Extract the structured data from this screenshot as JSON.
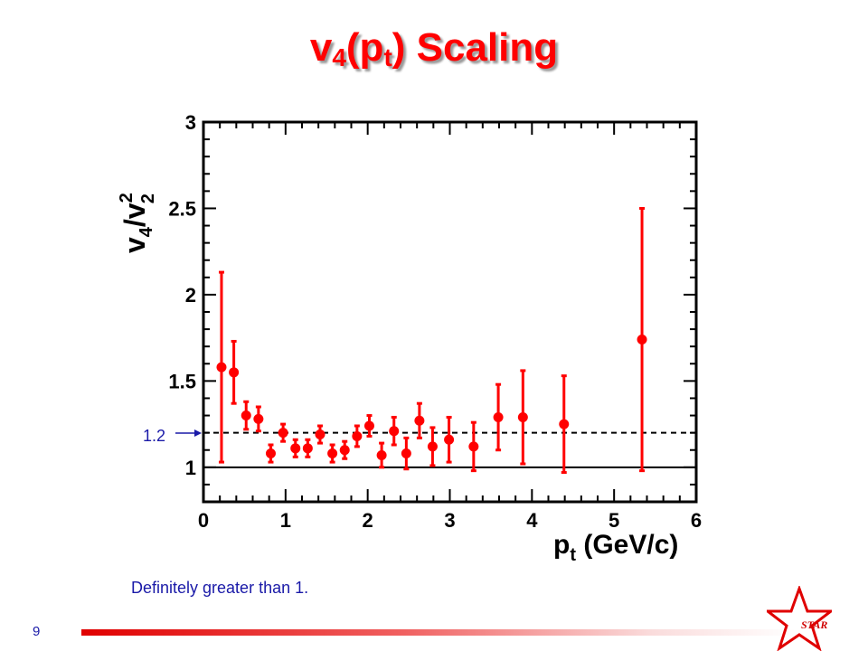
{
  "slide": {
    "title_main": "v",
    "title_sub1": "4",
    "title_mid": "(p",
    "title_sub2": "t",
    "title_end": ") Scaling",
    "note": "Definitely greater than 1.",
    "page_number": "9",
    "logo_text": "STAR"
  },
  "colors": {
    "title": "#ff0000",
    "data": "#ff0000",
    "note": "#1a1aa8",
    "footer_bar": "#e00000"
  },
  "chart_data": {
    "type": "scatter",
    "title": "",
    "xlabel": {
      "main": "p",
      "sub": "t",
      "rest": " (GeV/c)"
    },
    "ylabel": {
      "v": "v",
      "sub4": "4",
      "slash": "/v",
      "sup2": "2",
      "sub2": "2"
    },
    "xlim": [
      0,
      6
    ],
    "ylim": [
      0.8,
      3
    ],
    "x_ticks": [
      0,
      1,
      2,
      3,
      4,
      5,
      6
    ],
    "x_tick_labels": [
      "0",
      "1",
      "2",
      "3",
      "4",
      "5",
      "6"
    ],
    "y_ticks": [
      1,
      1.5,
      2,
      2.5,
      3
    ],
    "y_tick_labels": [
      "1",
      "1.5",
      "2",
      "2.5",
      "3"
    ],
    "reference_lines": [
      {
        "y": 1.0,
        "style": "solid"
      },
      {
        "y": 1.2,
        "style": "dashed",
        "label": "1.2"
      }
    ],
    "series": [
      {
        "points": [
          {
            "x": 0.22,
            "y": 1.58,
            "err": 0.55
          },
          {
            "x": 0.37,
            "y": 1.55,
            "err": 0.18
          },
          {
            "x": 0.52,
            "y": 1.3,
            "err": 0.08
          },
          {
            "x": 0.67,
            "y": 1.28,
            "err": 0.07
          },
          {
            "x": 0.82,
            "y": 1.08,
            "err": 0.05
          },
          {
            "x": 0.97,
            "y": 1.2,
            "err": 0.05
          },
          {
            "x": 1.12,
            "y": 1.11,
            "err": 0.05
          },
          {
            "x": 1.27,
            "y": 1.11,
            "err": 0.05
          },
          {
            "x": 1.42,
            "y": 1.19,
            "err": 0.05
          },
          {
            "x": 1.57,
            "y": 1.08,
            "err": 0.05
          },
          {
            "x": 1.72,
            "y": 1.1,
            "err": 0.05
          },
          {
            "x": 1.87,
            "y": 1.18,
            "err": 0.06
          },
          {
            "x": 2.02,
            "y": 1.24,
            "err": 0.06
          },
          {
            "x": 2.17,
            "y": 1.07,
            "err": 0.07
          },
          {
            "x": 2.32,
            "y": 1.21,
            "err": 0.08
          },
          {
            "x": 2.47,
            "y": 1.08,
            "err": 0.09
          },
          {
            "x": 2.63,
            "y": 1.27,
            "err": 0.1
          },
          {
            "x": 2.79,
            "y": 1.12,
            "err": 0.11
          },
          {
            "x": 2.99,
            "y": 1.16,
            "err": 0.13
          },
          {
            "x": 3.29,
            "y": 1.12,
            "err": 0.14
          },
          {
            "x": 3.59,
            "y": 1.29,
            "err": 0.19
          },
          {
            "x": 3.89,
            "y": 1.29,
            "err": 0.27
          },
          {
            "x": 4.39,
            "y": 1.25,
            "err": 0.28
          },
          {
            "x": 5.34,
            "y": 1.74,
            "err": 0.76
          }
        ]
      }
    ]
  }
}
